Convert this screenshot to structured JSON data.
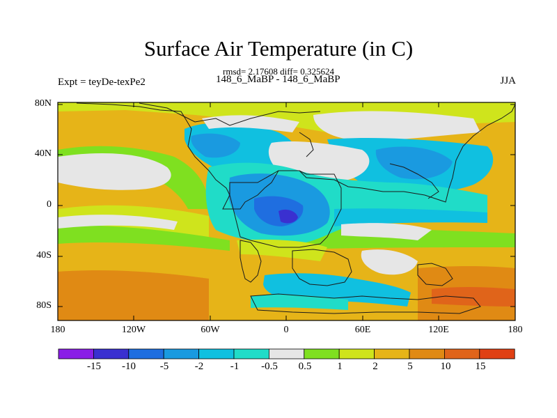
{
  "title": "Surface Air Temperature (in C)",
  "stats": "rmsd= 2.17608 diff= 0.325624",
  "experiment": "Expt = teyDe-texPe2",
  "difference_label": "148_6_MaBP - 148_6_MaBP",
  "season": "JJA",
  "axes": {
    "lat_labels": [
      "80N",
      "40N",
      "0",
      "40S",
      "80S"
    ],
    "lon_labels": [
      "180",
      "120W",
      "60W",
      "0",
      "60E",
      "120E",
      "180"
    ]
  },
  "colorbar": {
    "labels": [
      "-15",
      "-10",
      "-5",
      "-2",
      "-1",
      "-0.5",
      "0.5",
      "1",
      "2",
      "5",
      "10",
      "15"
    ],
    "colors": [
      "#8a1ee6",
      "#3a30d0",
      "#1f6ee0",
      "#1a9ae0",
      "#10c0e0",
      "#20dcc8",
      "#e6e6e6",
      "#7fe020",
      "#cfe41c",
      "#e6b418",
      "#e08a14",
      "#e0641a",
      "#e04014"
    ]
  }
}
